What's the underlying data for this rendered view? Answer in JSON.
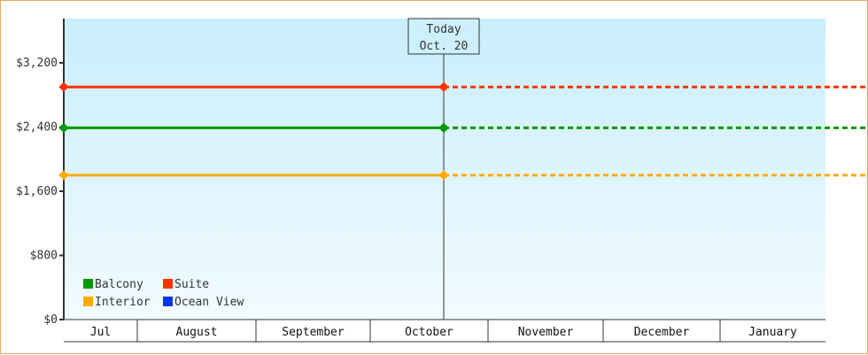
{
  "chart_data": {
    "type": "line",
    "ylim": [
      0,
      3750
    ],
    "y_ticks": [
      {
        "value": 0,
        "label": "$0"
      },
      {
        "value": 800,
        "label": "$800"
      },
      {
        "value": 1600,
        "label": "$1,600"
      },
      {
        "value": 2400,
        "label": "$2,400"
      },
      {
        "value": 3200,
        "label": "$3,200"
      }
    ],
    "x_categories": [
      "Jul",
      "August",
      "September",
      "October",
      "November",
      "December",
      "January"
    ],
    "today_marker": {
      "line1": "Today",
      "line2": "Oct. 20"
    },
    "series": [
      {
        "name": "Suite",
        "color": "#ff3300",
        "value": 2900,
        "style_past": "solid",
        "style_future": "dotted"
      },
      {
        "name": "Balcony",
        "color": "#009900",
        "value": 2390,
        "style_past": "solid",
        "style_future": "dotted"
      },
      {
        "name": "Interior",
        "color": "#ffaa00",
        "value": 1800,
        "style_past": "solid",
        "style_future": "dotted"
      },
      {
        "name": "Ocean View",
        "color": "#0033ff",
        "value": null
      }
    ],
    "legend": {
      "placement": "bottom-left",
      "order": [
        "Balcony",
        "Suite",
        "Interior",
        "Ocean View"
      ]
    },
    "grid": false
  }
}
